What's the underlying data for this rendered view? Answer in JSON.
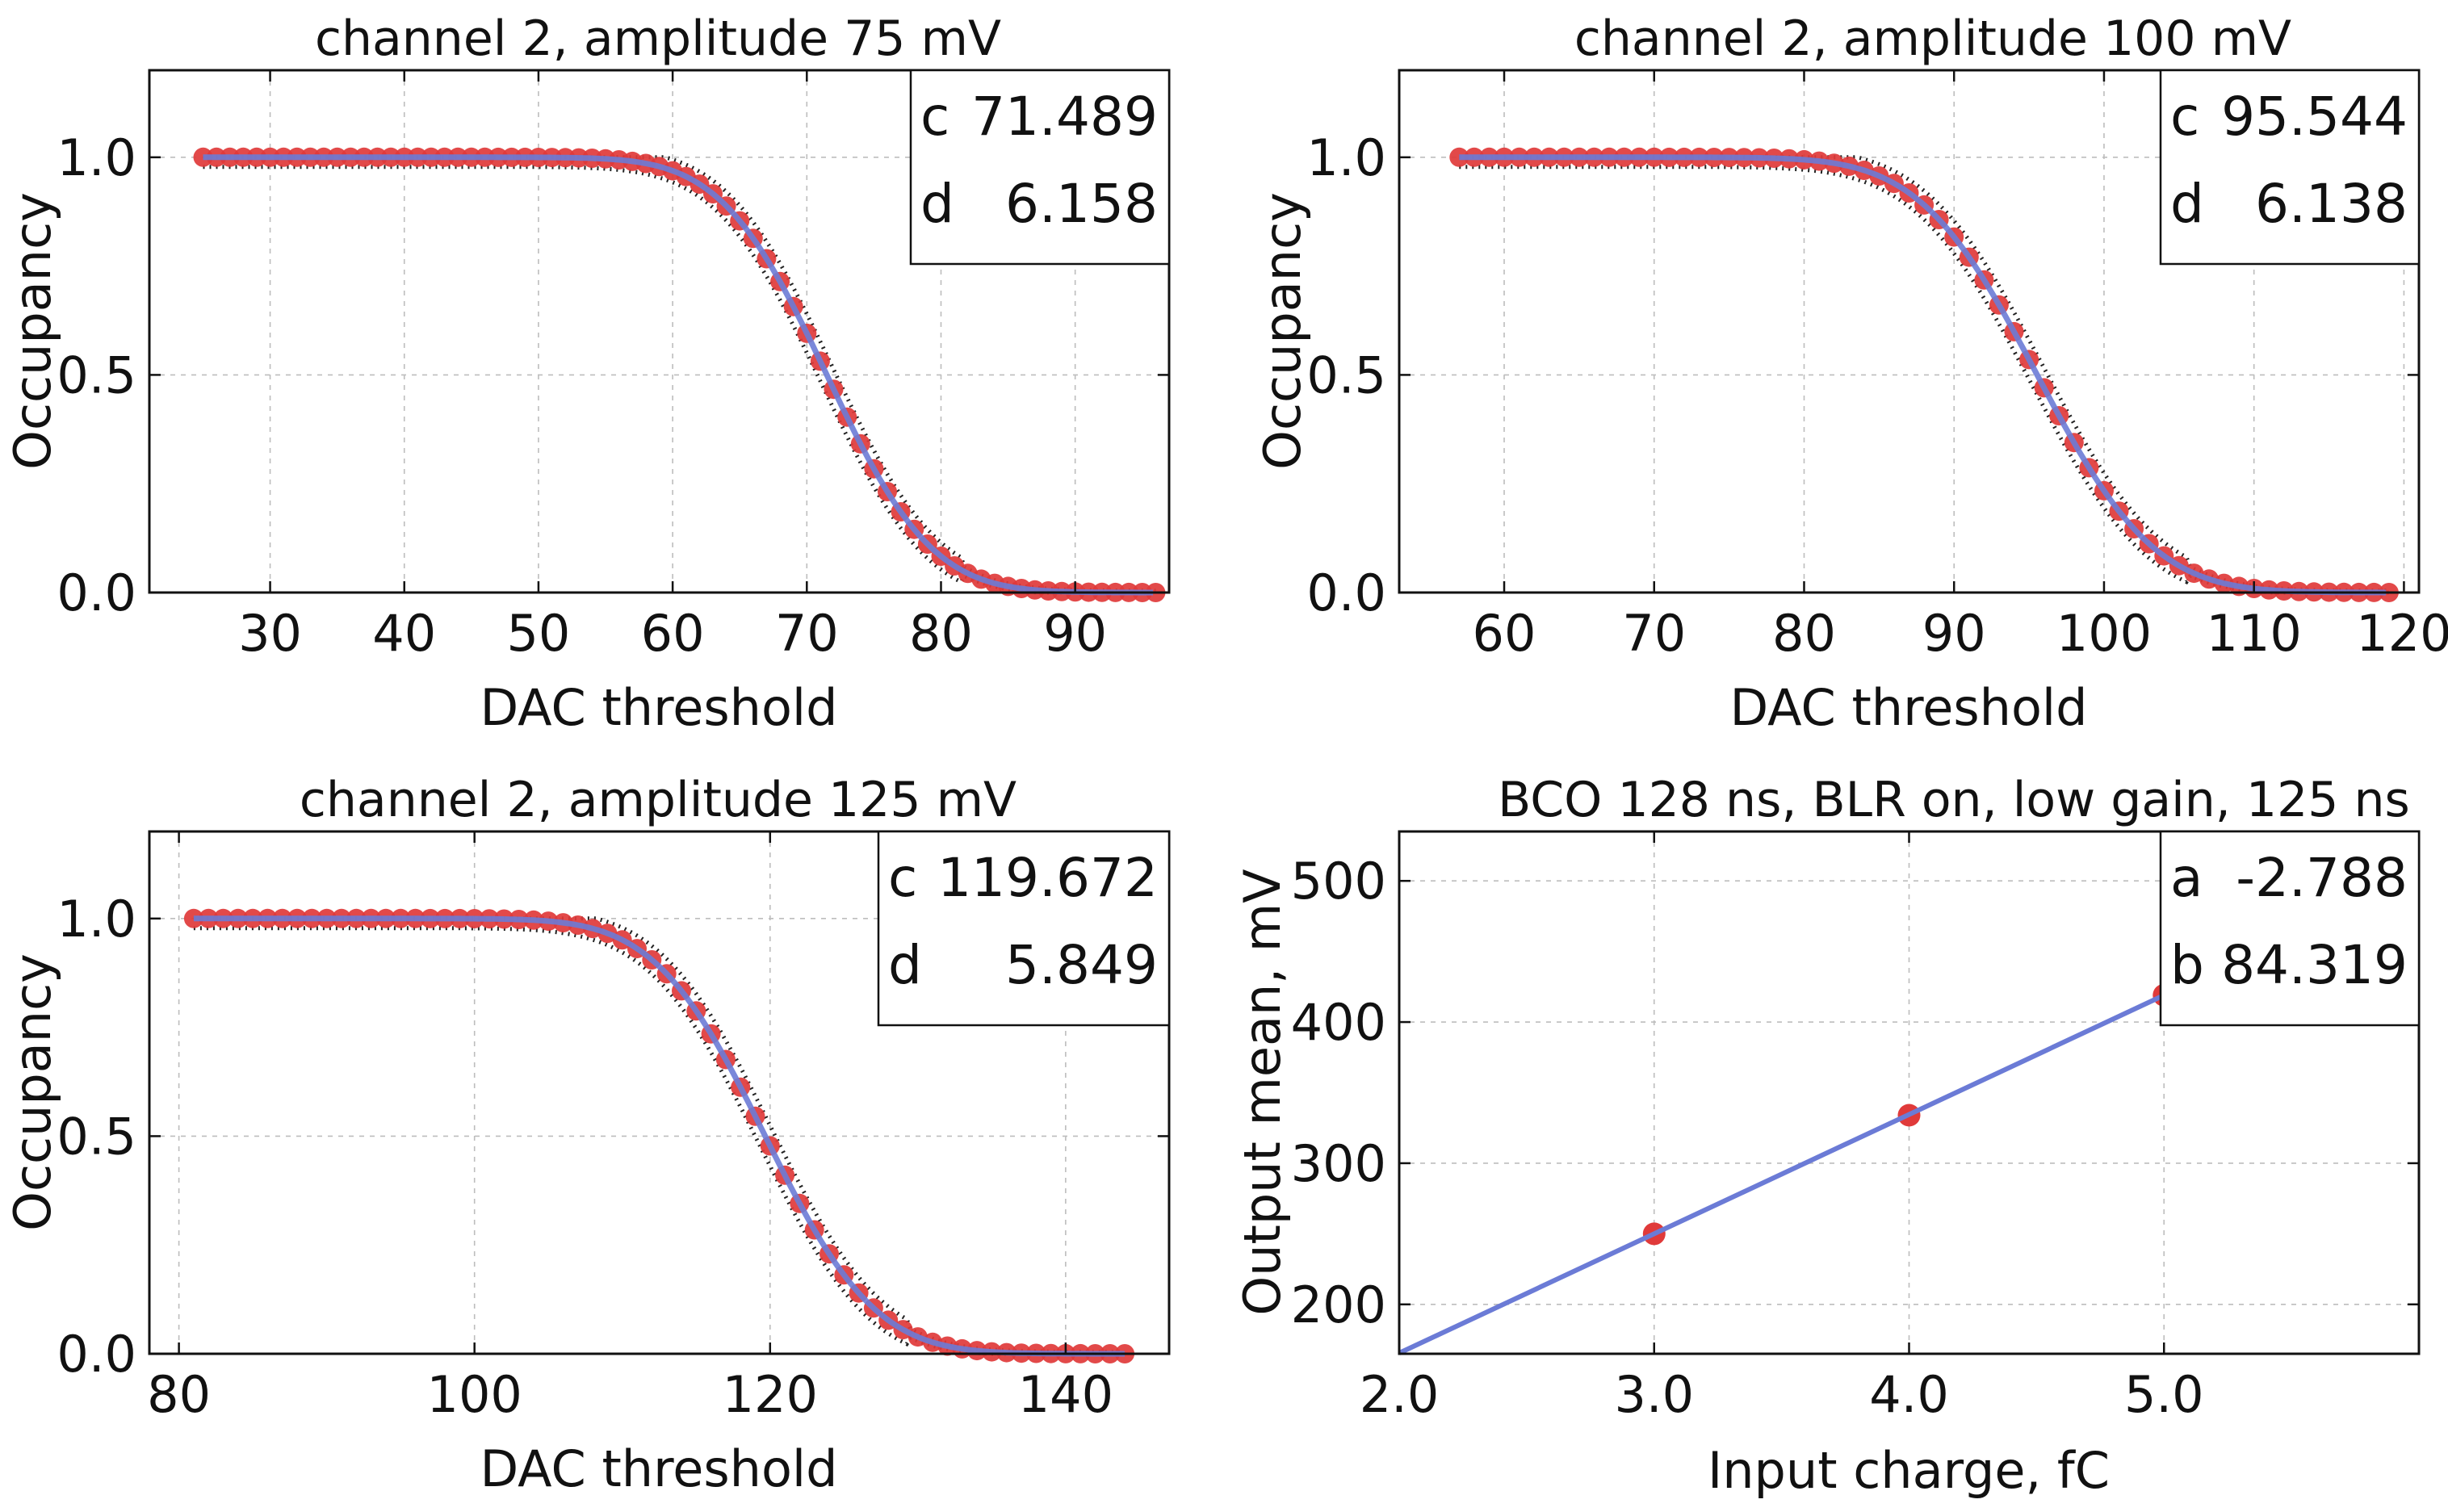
{
  "chart_data": [
    {
      "type": "scatter",
      "title": "channel 2, amplitude 75 mV",
      "xlabel": "DAC threshold",
      "ylabel": "Occupancy",
      "xlim": [
        21,
        97
      ],
      "ylim": [
        0.0,
        1.2
      ],
      "xticks": [
        30,
        40,
        50,
        60,
        70,
        80,
        90
      ],
      "xtick_labels": [
        "30",
        "40",
        "50",
        "60",
        "70",
        "80",
        "90"
      ],
      "yticks": [
        0.0,
        0.5,
        1.0
      ],
      "ytick_labels": [
        "0.0",
        "0.5",
        "1.0"
      ],
      "grid": true,
      "data_x_range": [
        25,
        96
      ],
      "fit": {
        "model": "erfc",
        "c": 71.489,
        "d": 6.158
      },
      "series": [
        {
          "name": "measured occupancy",
          "color": "#e03a3a",
          "style": "points"
        },
        {
          "name": "fit",
          "color": "#6b7bd6",
          "style": "line"
        },
        {
          "name": "reference",
          "color": "#222222",
          "style": "dotted"
        }
      ],
      "stats": [
        {
          "label": "c",
          "value": "71.489"
        },
        {
          "label": "d",
          "value": "6.158"
        }
      ]
    },
    {
      "type": "scatter",
      "title": "channel 2, amplitude 100 mV",
      "xlabel": "DAC threshold",
      "ylabel": "Occupancy",
      "xlim": [
        53,
        121
      ],
      "ylim": [
        0.0,
        1.2
      ],
      "xticks": [
        60,
        70,
        80,
        90,
        100,
        110,
        120
      ],
      "xtick_labels": [
        "60",
        "70",
        "80",
        "90",
        "100",
        "110",
        "120"
      ],
      "yticks": [
        0.0,
        0.5,
        1.0
      ],
      "ytick_labels": [
        "0.0",
        "0.5",
        "1.0"
      ],
      "grid": true,
      "data_x_range": [
        57,
        119
      ],
      "fit": {
        "model": "erfc",
        "c": 95.544,
        "d": 6.138
      },
      "series": [
        {
          "name": "measured occupancy",
          "color": "#e03a3a",
          "style": "points"
        },
        {
          "name": "fit",
          "color": "#6b7bd6",
          "style": "line"
        },
        {
          "name": "reference",
          "color": "#222222",
          "style": "dotted"
        }
      ],
      "stats": [
        {
          "label": "c",
          "value": "95.544"
        },
        {
          "label": "d",
          "value": "6.138"
        }
      ]
    },
    {
      "type": "scatter",
      "title": "channel 2, amplitude 125 mV",
      "xlabel": "DAC threshold",
      "ylabel": "Occupancy",
      "xlim": [
        78,
        147
      ],
      "ylim": [
        0.0,
        1.2
      ],
      "xticks": [
        80,
        100,
        120,
        140
      ],
      "xtick_labels": [
        "80",
        "100",
        "120",
        "140"
      ],
      "yticks": [
        0.0,
        0.5,
        1.0
      ],
      "ytick_labels": [
        "0.0",
        "0.5",
        "1.0"
      ],
      "grid": true,
      "data_x_range": [
        81,
        144
      ],
      "fit": {
        "model": "erfc",
        "c": 119.672,
        "d": 5.849
      },
      "series": [
        {
          "name": "measured occupancy",
          "color": "#e03a3a",
          "style": "points"
        },
        {
          "name": "fit",
          "color": "#6b7bd6",
          "style": "line"
        },
        {
          "name": "reference",
          "color": "#222222",
          "style": "dotted"
        }
      ],
      "stats": [
        {
          "label": "c",
          "value": "119.672"
        },
        {
          "label": "d",
          "value": "5.849"
        }
      ]
    },
    {
      "type": "line",
      "title": "BCO 128 ns, BLR on, low gain, 125 ns",
      "xlabel": "Input charge, fC",
      "ylabel": "Output mean, mV",
      "xlim": [
        2.0,
        6.0
      ],
      "ylim": [
        165,
        535
      ],
      "xticks": [
        2.0,
        3.0,
        4.0,
        5.0
      ],
      "xtick_labels": [
        "2.0",
        "3.0",
        "4.0",
        "5.0"
      ],
      "yticks": [
        200,
        300,
        400,
        500
      ],
      "ytick_labels": [
        "200",
        "300",
        "400",
        "500"
      ],
      "grid": true,
      "points": [
        {
          "x": 3.0,
          "y": 250
        },
        {
          "x": 4.0,
          "y": 334
        },
        {
          "x": 5.0,
          "y": 419
        }
      ],
      "fit": {
        "model": "linear",
        "a": -2.788,
        "b": 84.319
      },
      "series": [
        {
          "name": "measured output",
          "color": "#e03a3a",
          "style": "points"
        },
        {
          "name": "linear fit",
          "color": "#6b7bd6",
          "style": "line"
        }
      ],
      "stats": [
        {
          "label": "a",
          "value": "-2.788"
        },
        {
          "label": "b",
          "value": "84.319"
        }
      ]
    }
  ]
}
